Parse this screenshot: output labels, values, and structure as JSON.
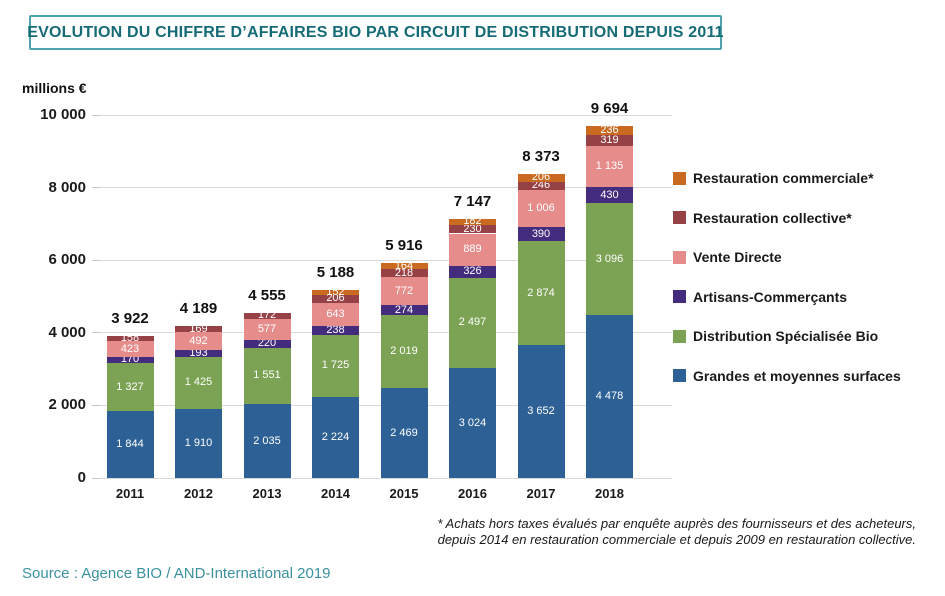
{
  "y_axis_unit": "millions €",
  "footnote": {
    "line1": "* Achats hors taxes évalués par enquête auprès des fournisseurs et des acheteurs,",
    "line2": "depuis 2014 en restauration commerciale et depuis 2009 en restauration collective."
  },
  "source": "Source : Agence BIO / AND-International 2019",
  "chart_data": {
    "type": "bar",
    "stacked": true,
    "title": "EVOLUTION DU CHIFFRE D’AFFAIRES BIO PAR CIRCUIT DE DISTRIBUTION DEPUIS 2011",
    "ylabel": "millions €",
    "xlabel": "",
    "ylim": [
      0,
      10000
    ],
    "yticks": [
      0,
      2000,
      4000,
      6000,
      8000,
      10000
    ],
    "grid": true,
    "legend_position": "right",
    "categories": [
      "2011",
      "2012",
      "2013",
      "2014",
      "2015",
      "2016",
      "2017",
      "2018"
    ],
    "totals": [
      3922,
      4189,
      4555,
      5188,
      5916,
      7147,
      8373,
      9694
    ],
    "series": [
      {
        "name": "Grandes et moyennes surfaces",
        "color": "#2D6095",
        "values": [
          1844,
          1910,
          2035,
          2224,
          2469,
          3024,
          3652,
          4478
        ]
      },
      {
        "name": "Distribution Spécialisée Bio",
        "color": "#7CA254",
        "values": [
          1327,
          1425,
          1551,
          1725,
          2019,
          2497,
          2874,
          3096
        ]
      },
      {
        "name": "Artisans-Commerçants",
        "color": "#432B7E",
        "values": [
          170,
          193,
          220,
          238,
          274,
          326,
          390,
          430
        ]
      },
      {
        "name": "Vente Directe",
        "color": "#E68C8A",
        "values": [
          423,
          492,
          577,
          643,
          772,
          889,
          1006,
          1135
        ]
      },
      {
        "name": "Restauration collective*",
        "color": "#964146",
        "values": [
          158,
          169,
          172,
          206,
          218,
          230,
          246,
          319
        ]
      },
      {
        "name": "Restauration commerciale*",
        "color": "#C96A20",
        "values": [
          0,
          0,
          0,
          152,
          164,
          182,
          206,
          236
        ]
      }
    ]
  }
}
